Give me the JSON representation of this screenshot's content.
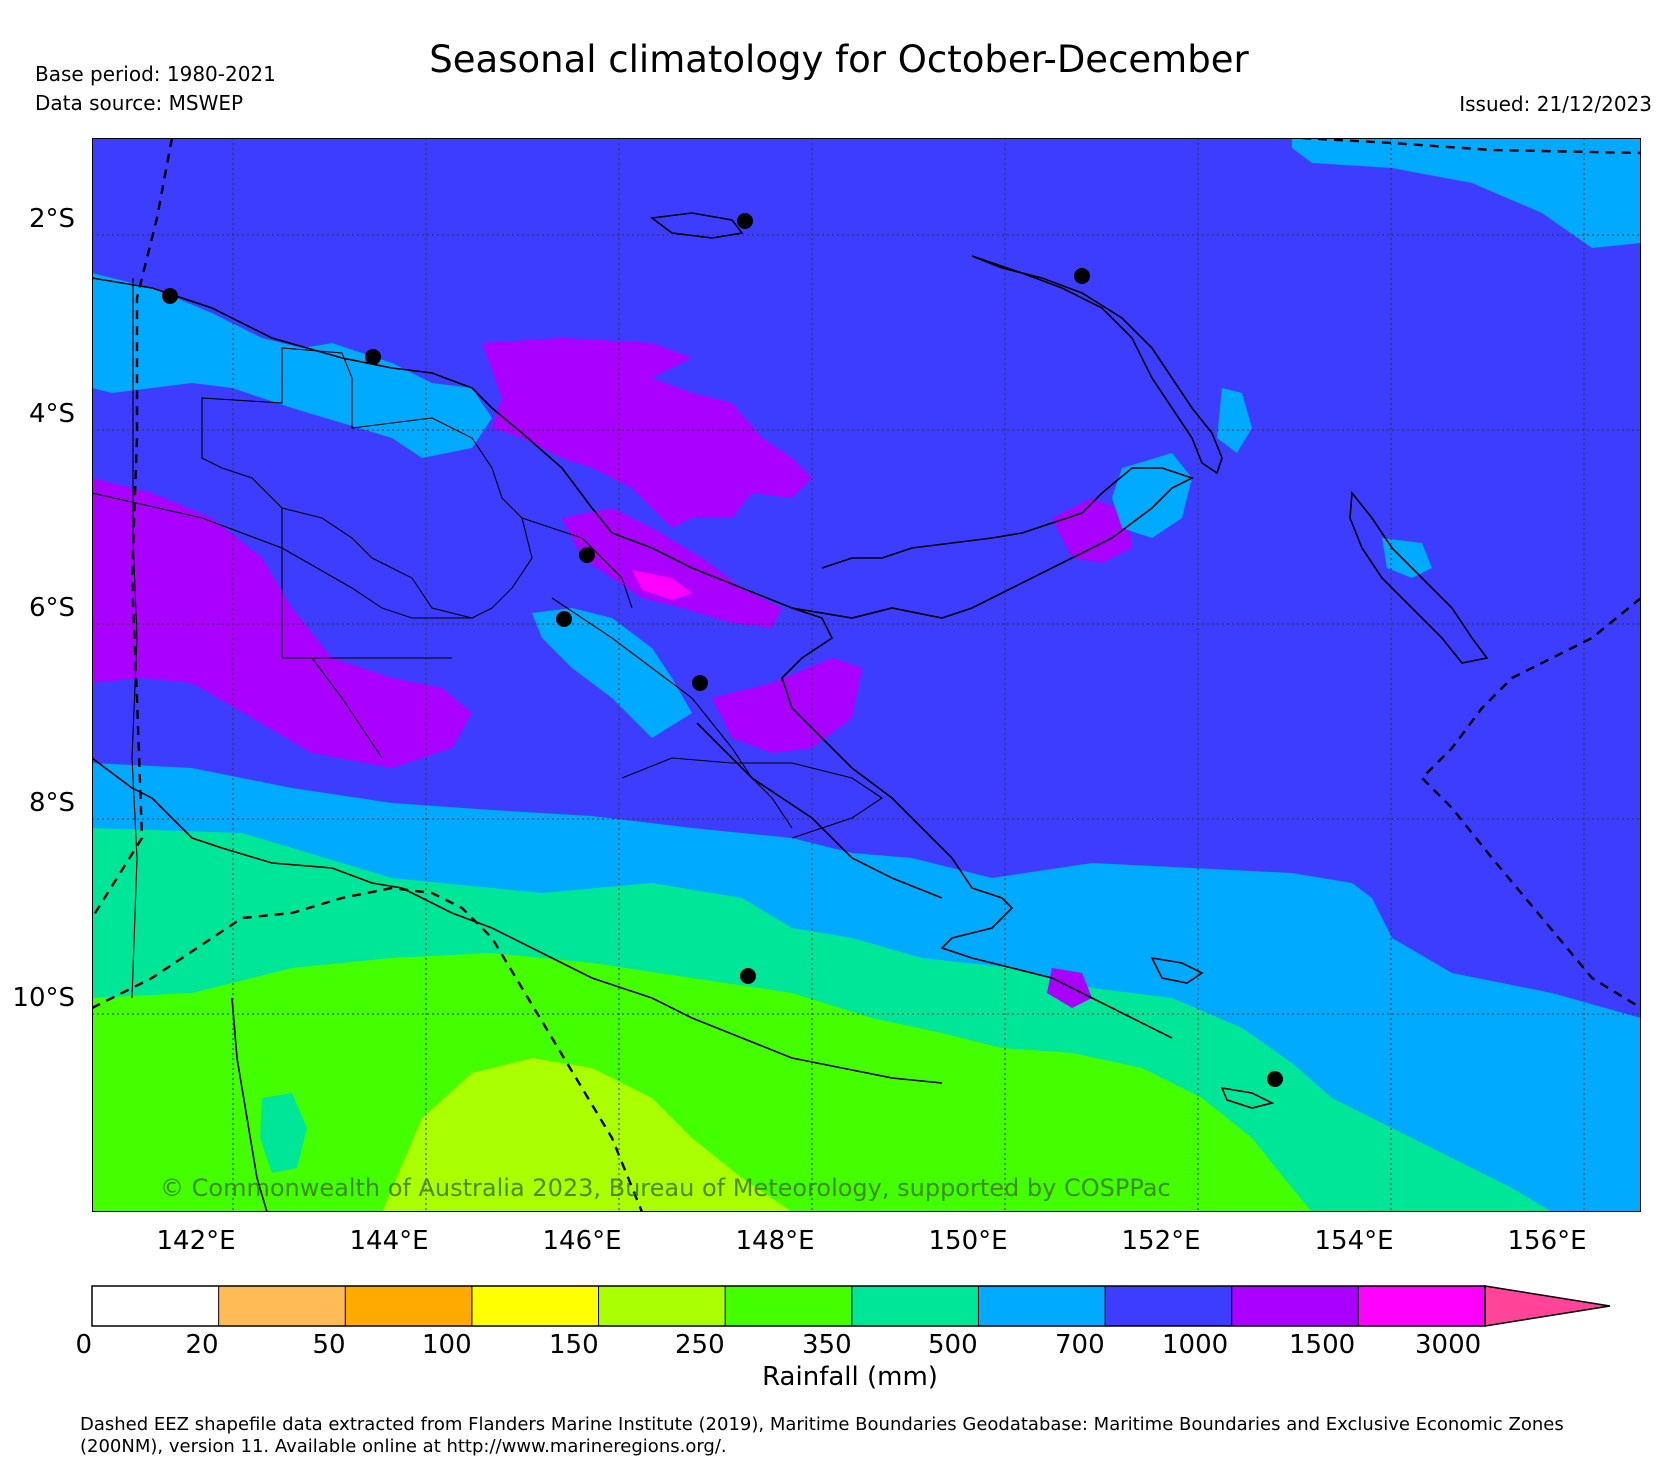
{
  "header": {
    "title": "Seasonal climatology for October-December",
    "base_period": "Base period: 1980-2021",
    "data_source": "Data source: MSWEP",
    "issued": "Issued: 21/12/2023"
  },
  "map": {
    "lat_labels": [
      "2°S",
      "4°S",
      "6°S",
      "8°S",
      "10°S"
    ],
    "lon_labels": [
      "142°E",
      "144°E",
      "146°E",
      "148°E",
      "150°E",
      "152°E",
      "154°E",
      "156°E"
    ],
    "copyright": "© Commonwealth of Australia 2023, Bureau of Meteorology, supported by COSPPac",
    "colors": {
      "c_20": "#ffffff",
      "c_50": "#ffbb55",
      "c_100": "#ffaa00",
      "c_150": "#ffff00",
      "c_250": "#aaff00",
      "c_350": "#44ff00",
      "c_500": "#00e699",
      "c_700": "#00aaff",
      "c_1000": "#3d3dff",
      "c_1500": "#aa00ff",
      "c_3000": "#ff00ff",
      "over": "#ff4499"
    }
  },
  "colorbar": {
    "label": "Rainfall (mm)",
    "ticks": [
      "0",
      "20",
      "50",
      "100",
      "150",
      "250",
      "350",
      "500",
      "700",
      "1000",
      "1500",
      "3000"
    ],
    "colors": [
      "#ffffff",
      "#ffbb55",
      "#ffaa00",
      "#ffff00",
      "#aaff00",
      "#44ff00",
      "#00e699",
      "#00aaff",
      "#3d3dff",
      "#aa00ff",
      "#ff00ff"
    ],
    "extend_color": "#ff4499"
  },
  "footnote": {
    "line1": "Dashed EEZ shapefile data extracted from Flanders Marine Institute (2019), Maritime Boundaries Geodatabase: Maritime Boundaries and Exclusive Economic Zones",
    "line2": "(200NM), version 11. Available online at http://www.marineregions.org/."
  }
}
